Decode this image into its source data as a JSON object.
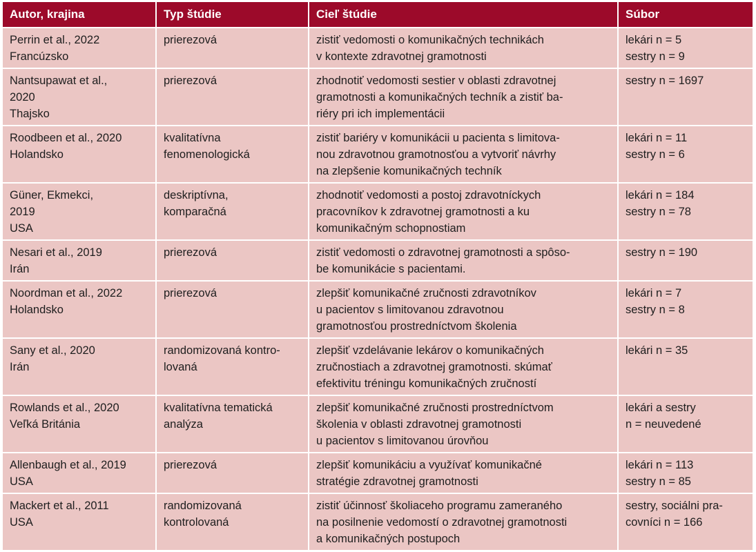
{
  "headers": [
    "Autor, krajina",
    "Typ štúdie",
    "Cieľ štúdie",
    "Súbor"
  ],
  "rows": [
    {
      "author": [
        "Perrin et al., 2022",
        "Francúzsko"
      ],
      "type": [
        "prierezová"
      ],
      "goal": [
        "zistiť vedomosti o komunikačných technikách",
        "v kontexte zdravotnej gramotnosti"
      ],
      "sample": [
        "lekári n = 5",
        "sestry n = 9"
      ]
    },
    {
      "author": [
        "Nantsupawat et al.,",
        "2020",
        "Thajsko"
      ],
      "type": [
        "prierezová"
      ],
      "goal": [
        "zhodnotiť vedomosti sestier v oblasti zdravotnej",
        "gramotnosti a komunikačných techník a zistiť ba-",
        "riéry pri ich implementácii"
      ],
      "sample": [
        "sestry n = 1697"
      ]
    },
    {
      "author": [
        "Roodbeen et al., 2020",
        "Holandsko"
      ],
      "type": [
        "kvalitatívna",
        "fenomenologická"
      ],
      "goal": [
        "zistiť bariéry v komunikácii u pacienta s limitova-",
        "nou zdravotnou gramotnosťou a vytvoriť návrhy",
        "na zlepšenie komunikačných techník"
      ],
      "sample": [
        "lekári n = 11",
        "sestry n = 6"
      ]
    },
    {
      "author": [
        "Güner, Ekmekci,",
        "2019",
        "USA"
      ],
      "type": [
        "deskriptívna,",
        "komparačná"
      ],
      "goal": [
        "zhodnotiť vedomosti a postoj zdravotníckych",
        "pracovníkov k zdravotnej gramotnosti a ku",
        "komunikačným schopnostiam"
      ],
      "sample": [
        "lekári n = 184",
        "sestry n = 78"
      ]
    },
    {
      "author": [
        "Nesari et al., 2019",
        "Irán"
      ],
      "type": [
        "prierezová"
      ],
      "goal": [
        "zistiť vedomosti o zdravotnej gramotnosti a spôso-",
        "be komunikácie s pacientami."
      ],
      "sample": [
        "sestry n = 190"
      ]
    },
    {
      "author": [
        "Noordman et al., 2022",
        "Holandsko"
      ],
      "type": [
        "prierezová"
      ],
      "goal": [
        "zlepšiť komunikačné zručnosti zdravotníkov",
        "u pacientov s limitovanou zdravotnou",
        "gramotnosťou prostredníctvom školenia"
      ],
      "sample": [
        "lekári n = 7",
        "sestry n = 8"
      ]
    },
    {
      "author": [
        "Sany et al., 2020",
        "Irán"
      ],
      "type": [
        "randomizovaná kontro-",
        "lovaná"
      ],
      "goal": [
        "zlepšiť vzdelávanie lekárov o komunikačných",
        "zručnostiach a zdravotnej gramotnosti. skúmať",
        "efektivitu tréningu komunikačných zručností"
      ],
      "sample": [
        "lekári n = 35"
      ]
    },
    {
      "author": [
        "Rowlands et al., 2020",
        "Veľká Británia"
      ],
      "type": [
        "kvalitatívna tematická",
        "analýza"
      ],
      "goal": [
        "zlepšiť komunikačné zručnosti prostredníctvom",
        "školenia v oblasti zdravotnej gramotnosti",
        "u pacientov s limitovanou úrovňou"
      ],
      "sample": [
        "lekári a sestry",
        "n = neuvedené"
      ]
    },
    {
      "author": [
        "Allenbaugh et al., 2019",
        "USA"
      ],
      "type": [
        "prierezová"
      ],
      "goal": [
        "zlepšiť komunikáciu a využívať komunikačné",
        "stratégie zdravotnej gramotnosti"
      ],
      "sample": [
        "lekári n = 113",
        "sestry n = 85"
      ]
    },
    {
      "author": [
        "Mackert et al., 2011",
        "USA"
      ],
      "type": [
        "randomizovaná",
        "kontrolovaná"
      ],
      "goal": [
        "zistiť účinnosť školiaceho programu zameraného",
        "na posilnenie vedomostí o zdravotnej gramotnosti",
        "a komunikačných postupoch"
      ],
      "sample": [
        "sestry, sociálni pra-",
        "covníci n = 166"
      ]
    }
  ]
}
